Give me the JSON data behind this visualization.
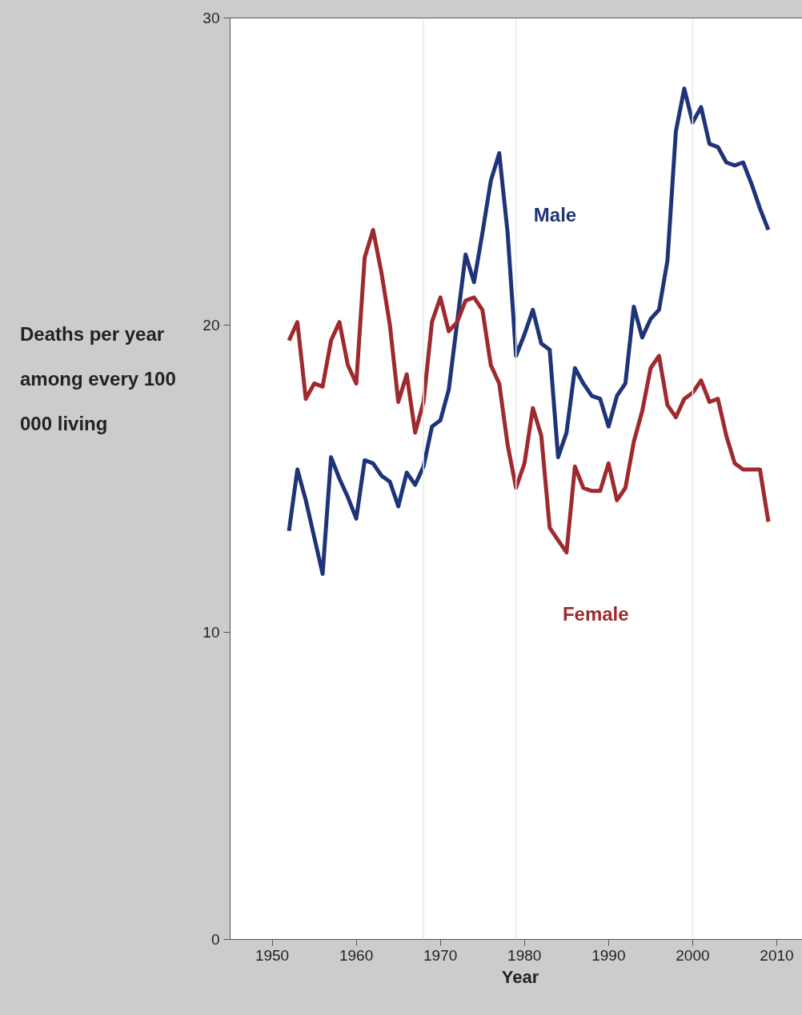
{
  "chart_data": {
    "type": "line",
    "xlabel": "Year",
    "ylabel": "Deaths per year among every 100 000 living",
    "x": [
      1952,
      1953,
      1954,
      1955,
      1956,
      1957,
      1958,
      1959,
      1960,
      1961,
      1962,
      1963,
      1964,
      1965,
      1966,
      1967,
      1968,
      1969,
      1970,
      1971,
      1972,
      1973,
      1974,
      1975,
      1976,
      1977,
      1978,
      1979,
      1980,
      1981,
      1982,
      1983,
      1984,
      1985,
      1986,
      1987,
      1988,
      1989,
      1990,
      1991,
      1992,
      1993,
      1994,
      1995,
      1996,
      1997,
      1998,
      1999,
      2000,
      2001,
      2002,
      2003,
      2004,
      2005,
      2006,
      2007,
      2008,
      2009
    ],
    "series": [
      {
        "name": "Male",
        "color": "#1f3478",
        "values": [
          13.3,
          15.3,
          14.3,
          13.1,
          11.9,
          15.7,
          15.0,
          14.4,
          13.7,
          15.6,
          15.5,
          15.1,
          14.9,
          14.1,
          15.2,
          14.8,
          15.4,
          16.7,
          16.9,
          17.9,
          20.1,
          22.3,
          21.4,
          23.0,
          24.7,
          25.6,
          23.0,
          19.0,
          19.7,
          20.5,
          19.4,
          19.2,
          15.7,
          16.5,
          18.6,
          18.1,
          17.7,
          17.6,
          16.7,
          17.7,
          18.1,
          20.6,
          19.6,
          20.2,
          20.5,
          22.1,
          26.3,
          27.7,
          26.6,
          27.1,
          25.9,
          25.8,
          25.3,
          25.2,
          25.3,
          24.6,
          23.8,
          23.1
        ]
      },
      {
        "name": "Female",
        "color": "#9e2a2f",
        "values": [
          19.5,
          20.1,
          17.6,
          18.1,
          18.0,
          19.5,
          20.1,
          18.7,
          18.1,
          22.2,
          23.1,
          21.7,
          20.0,
          17.5,
          18.4,
          16.5,
          17.5,
          20.1,
          20.9,
          19.8,
          20.1,
          20.8,
          20.9,
          20.5,
          18.7,
          18.1,
          16.1,
          14.7,
          15.5,
          17.3,
          16.4,
          13.4,
          13.0,
          12.6,
          15.4,
          14.7,
          14.6,
          14.6,
          15.5,
          14.3,
          14.7,
          16.2,
          17.2,
          18.6,
          19.0,
          17.4,
          17.0,
          17.6,
          17.8,
          18.2,
          17.5,
          17.6,
          16.4,
          15.5,
          15.3,
          15.3,
          15.3,
          13.6
        ]
      }
    ],
    "xlim": [
      1945,
      2014
    ],
    "xticks": [
      1950,
      1960,
      1970,
      1980,
      1990,
      2000,
      2010
    ],
    "ylim": [
      0,
      30
    ],
    "yticks": [
      0,
      10,
      20,
      30
    ],
    "ref_lines": [
      {
        "axis": "x",
        "value": 1968,
        "color": "#e8e8e8"
      },
      {
        "axis": "x",
        "value": 1979,
        "color": "#e8e8e8"
      },
      {
        "axis": "x",
        "value": 2000,
        "color": "#e8e8e8"
      }
    ],
    "grid": false,
    "legend": false,
    "marker": "none",
    "line_style": "solid"
  }
}
